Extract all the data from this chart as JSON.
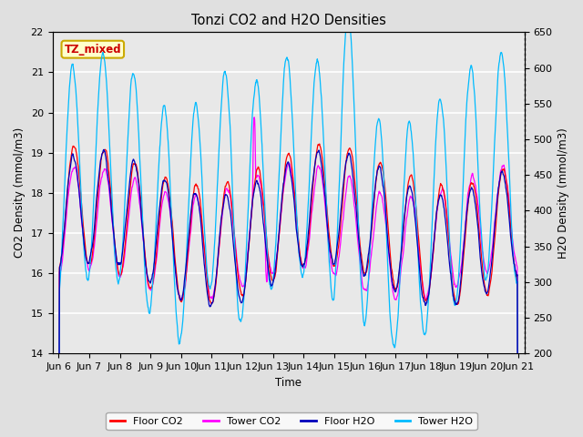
{
  "title": "Tonzi CO2 and H2O Densities",
  "xlabel": "Time",
  "ylabel_left": "CO2 Density (mmol/m3)",
  "ylabel_right": "H2O Density (mmol/m3)",
  "ylim_left": [
    14.0,
    22.0
  ],
  "ylim_right": [
    200,
    650
  ],
  "annotation_text": "TZ_mixed",
  "annotation_bg": "#FFFFCC",
  "annotation_border": "#CCAA00",
  "annotation_text_color": "#CC0000",
  "colors": {
    "floor_co2": "#FF0000",
    "tower_co2": "#FF00FF",
    "floor_h2o": "#0000BB",
    "tower_h2o": "#00BBFF"
  },
  "legend_labels": [
    "Floor CO2",
    "Tower CO2",
    "Floor H2O",
    "Tower H2O"
  ],
  "bg_color": "#E0E0E0",
  "plot_bg": "#E8E8E8",
  "xtick_labels": [
    "Jun 6",
    "Jun 7",
    "Jun 8",
    "Jun 9",
    "Jun 10",
    "Jun 11",
    "Jun 12",
    "Jun 13",
    "Jun 14",
    "Jun 15",
    "Jun 16",
    "Jun 17",
    "Jun 18",
    "Jun 19",
    "Jun 20",
    "Jun 21"
  ],
  "xtick_positions": [
    0,
    1,
    2,
    3,
    4,
    5,
    6,
    7,
    8,
    9,
    10,
    11,
    12,
    13,
    14,
    15
  ]
}
